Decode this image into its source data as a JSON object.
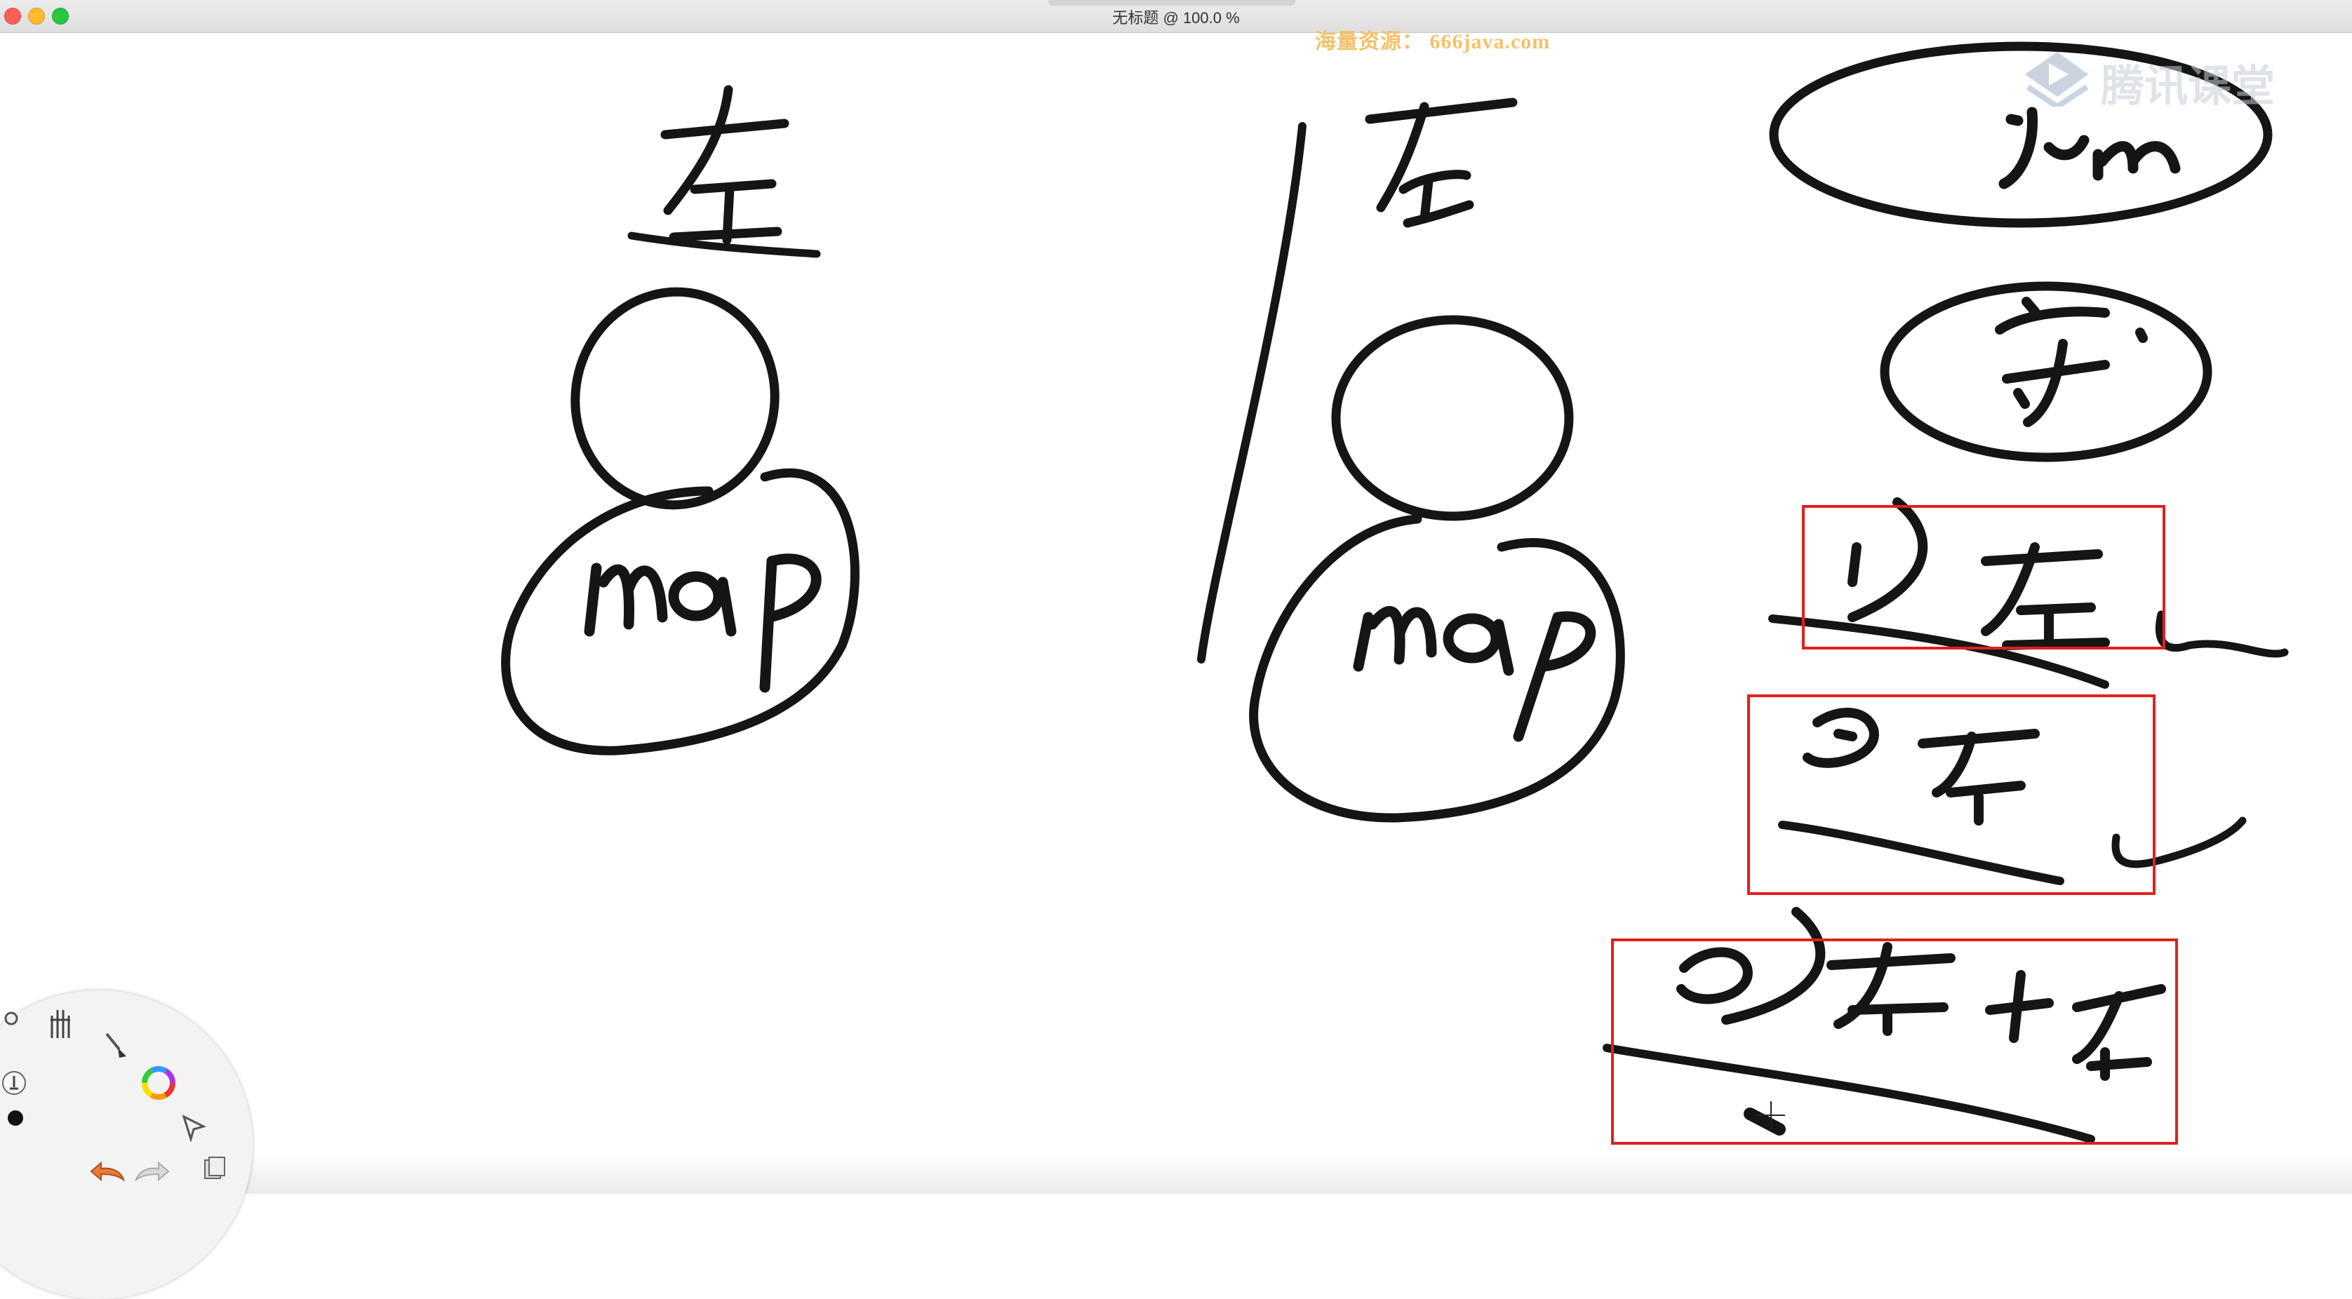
{
  "window": {
    "title": "无标题 @ 100.0 %"
  },
  "watermark": {
    "text": "海量资源： 666java.com"
  },
  "brand": {
    "logo_text": "腾讯课堂",
    "logo_icon": "play-icon"
  },
  "board": {
    "handwriting": [
      "左",
      "map",
      "右",
      "map",
      "jvm",
      "守",
      "1) 左",
      "2) 右",
      "3) 左 + 右"
    ],
    "highlight_color": "#e02020",
    "ink_color": "#111111"
  },
  "toolbar": {
    "tools": [
      "hand-icon",
      "brush-icon",
      "color-wheel-icon",
      "select-arrow-icon",
      "layers-icon",
      "undo-icon",
      "redo-icon",
      "pen-size-icon",
      "color-dot-icon"
    ]
  },
  "colors": {
    "close": "#fe5f57",
    "minimize": "#febc2e",
    "maximize": "#28c840",
    "watermark": "#f2c26a"
  }
}
